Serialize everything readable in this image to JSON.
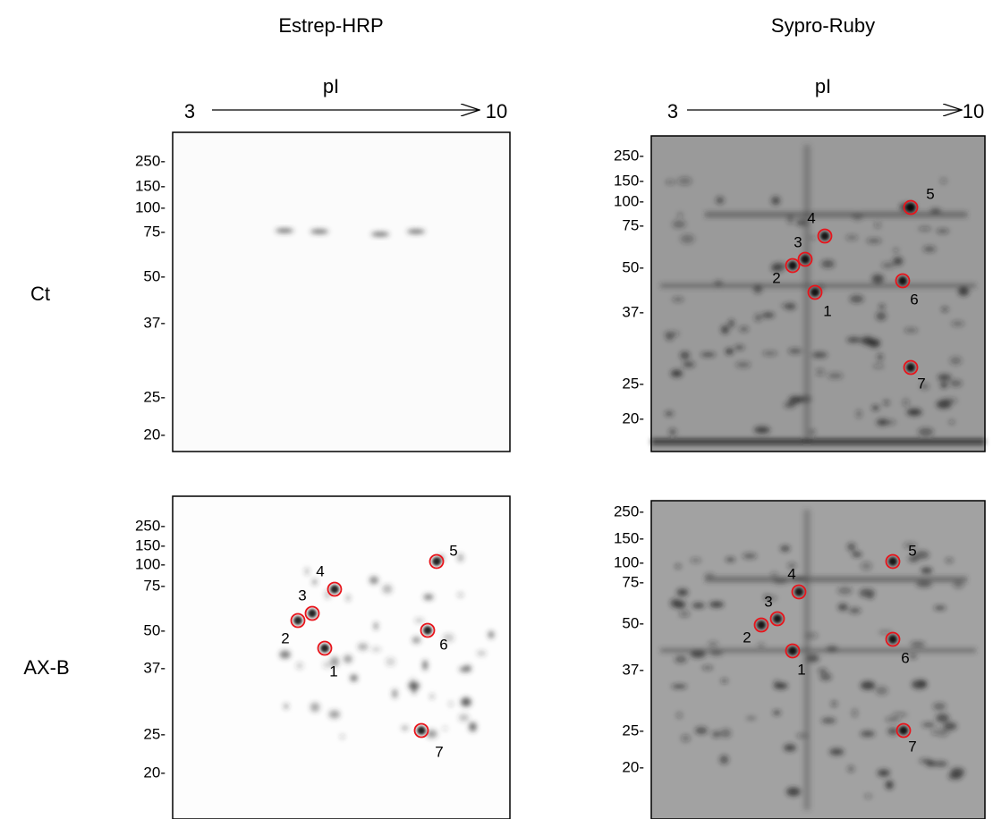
{
  "columns": [
    {
      "title": "Estrep-HRP",
      "axis_label": "pI",
      "axis_start": "3",
      "axis_end": "10"
    },
    {
      "title": "Sypro-Ruby",
      "axis_label": "pI",
      "axis_start": "3",
      "axis_end": "10"
    }
  ],
  "rows": [
    "Ct",
    "AX-B"
  ],
  "panels": [
    {
      "mw_labels": [
        "250-",
        "150-",
        "100-",
        "75-",
        "50-",
        "37-",
        "25-",
        "20-"
      ],
      "spots": []
    },
    {
      "mw_labels": [
        "250-",
        "150-",
        "100-",
        "75-",
        "50-",
        "37-",
        "25-",
        "20-"
      ],
      "spots": [
        "1",
        "2",
        "3",
        "4",
        "5",
        "6",
        "7"
      ]
    },
    {
      "mw_labels": [
        "250-",
        "150-",
        "100-",
        "75-",
        "50-",
        "37-",
        "25-",
        "20-"
      ],
      "spots": [
        "1",
        "2",
        "3",
        "4",
        "5",
        "6",
        "7"
      ]
    },
    {
      "mw_labels": [
        "250-",
        "150-",
        "100-",
        "75-",
        "50-",
        "37-",
        "25-",
        "20-"
      ],
      "spots": [
        "1",
        "2",
        "3",
        "4",
        "5",
        "6",
        "7"
      ]
    }
  ]
}
